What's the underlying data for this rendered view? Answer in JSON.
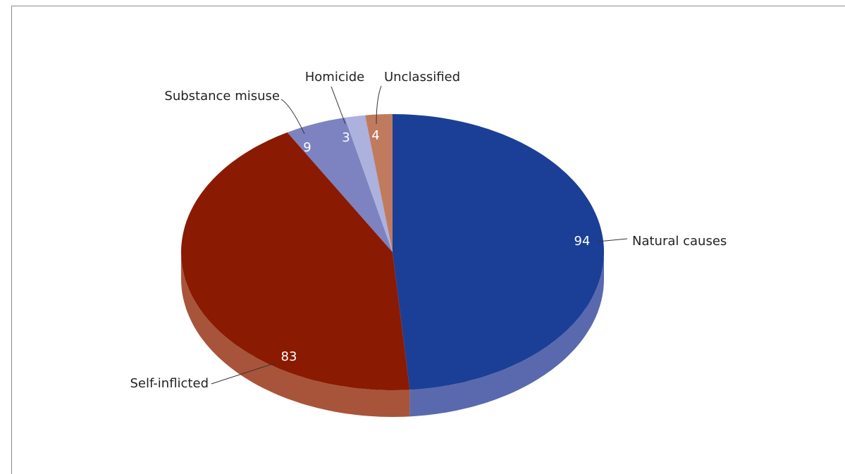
{
  "chart_data": {
    "type": "pie",
    "style": "3d",
    "slices": [
      {
        "label": "Natural causes",
        "value": 94,
        "color": "#1b3f96",
        "side_color": "#5a69ad"
      },
      {
        "label": "Self-inflicted",
        "value": 83,
        "color": "#8b1a02",
        "side_color": "#a8543a"
      },
      {
        "label": "Substance misuse",
        "value": 9,
        "color": "#7c83c0",
        "side_color": "#7c83c0"
      },
      {
        "label": "Homicide",
        "value": 3,
        "color": "#adb1de",
        "side_color": "#adb1de"
      },
      {
        "label": "Unclassified",
        "value": 4,
        "color": "#c07b5f",
        "side_color": "#c07b5f"
      }
    ],
    "legend": "none",
    "data_labels": "values-inside, category-outside"
  }
}
